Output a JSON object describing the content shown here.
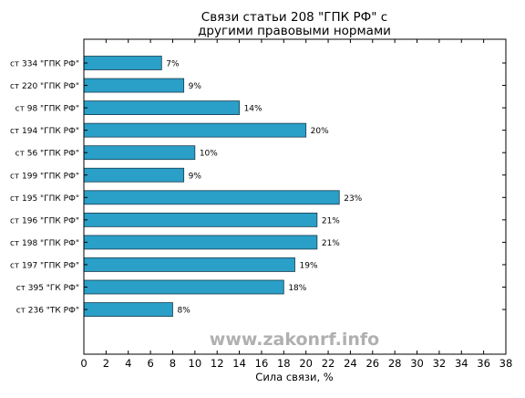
{
  "chart_data": {
    "type": "bar",
    "orientation": "horizontal",
    "title_line1": "Связи статьи 208 \"ГПК РФ\" с",
    "title_line2": "другими правовыми нормами",
    "xlabel": "Сила связи, %",
    "ylabel": "",
    "xlim": [
      0,
      38
    ],
    "xticks": [
      0,
      2,
      4,
      6,
      8,
      10,
      12,
      14,
      16,
      18,
      20,
      22,
      24,
      26,
      28,
      30,
      32,
      34,
      36,
      38
    ],
    "categories": [
      "ст 334 \"ГПК РФ\"",
      "ст 220 \"ГПК РФ\"",
      "ст 98 \"ГПК РФ\"",
      "ст 194 \"ГПК РФ\"",
      "ст 56 \"ГПК РФ\"",
      "ст 199 \"ГПК РФ\"",
      "ст 195 \"ГПК РФ\"",
      "ст 196 \"ГПК РФ\"",
      "ст 198 \"ГПК РФ\"",
      "ст 197 \"ГПК РФ\"",
      "ст 395 \"ГК РФ\"",
      "ст 236 \"ТК РФ\""
    ],
    "values": [
      7,
      9,
      14,
      20,
      10,
      9,
      23,
      21,
      21,
      19,
      18,
      8
    ],
    "value_labels": [
      "7%",
      "9%",
      "14%",
      "20%",
      "10%",
      "9%",
      "23%",
      "21%",
      "21%",
      "19%",
      "18%",
      "8%"
    ],
    "bar_color": "#2a9fc8",
    "grid": false,
    "watermark": "www.zakonrf.info"
  }
}
